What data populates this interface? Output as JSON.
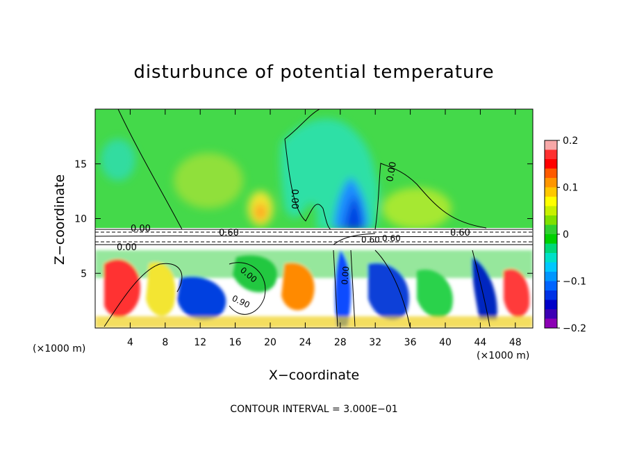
{
  "chart_data": {
    "type": "heatmap",
    "title": "disturbunce of potential temperature",
    "xlabel": "X−coordinate",
    "ylabel": "Z−coordinate",
    "x_unit": "(×1000 m)",
    "y_unit": "(×1000 m)",
    "xlim": [
      0,
      50
    ],
    "ylim": [
      0,
      20
    ],
    "x_ticks": [
      "4",
      "8",
      "12",
      "16",
      "20",
      "24",
      "28",
      "32",
      "36",
      "40",
      "44",
      "48"
    ],
    "y_ticks": [
      "5",
      "10",
      "15"
    ],
    "colorbar": {
      "ticks": [
        "0.2",
        "0.1",
        "0",
        "−0.1",
        "−0.2"
      ],
      "range": [
        -0.2,
        0.2
      ],
      "colors": [
        "#f7a8a8",
        "#ff3030",
        "#ff0000",
        "#ff5a00",
        "#ff9600",
        "#ffc800",
        "#ffff00",
        "#c8f000",
        "#7fe000",
        "#30d030",
        "#00d000",
        "#00d878",
        "#00e0c8",
        "#00c8ff",
        "#0096ff",
        "#0064ff",
        "#0032e6",
        "#0000c8",
        "#3c00b4",
        "#8c00b4"
      ]
    },
    "contour_labels": [
      "0.00",
      "0.60",
      "0.00",
      "0.00",
      "0.60",
      "0.00",
      "0.60",
      "0.00",
      "0.00",
      "0.90",
      "0.60"
    ],
    "footer": "CONTOUR INTERVAL = 3.000E−01"
  }
}
